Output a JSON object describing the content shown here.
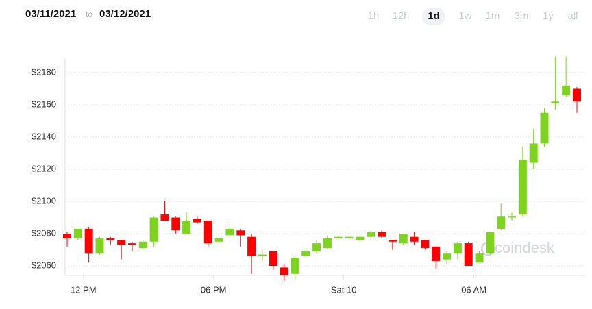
{
  "header": {
    "from": "03/11/2021",
    "to_word": "to",
    "to": "03/12/2021"
  },
  "ranges": {
    "options": [
      "1h",
      "12h",
      "1d",
      "1w",
      "1m",
      "3m",
      "1y",
      "all"
    ],
    "selected": 2
  },
  "chart_data": {
    "type": "candlestick",
    "watermark": "coindesk",
    "up_color": "#7ed321",
    "down_color": "#ff0000",
    "grid": true,
    "ylim": [
      2048,
      2195
    ],
    "yticks": [
      {
        "value": 2060,
        "label": "$2060"
      },
      {
        "value": 2080,
        "label": "$2080"
      },
      {
        "value": 2100,
        "label": "$2100"
      },
      {
        "value": 2120,
        "label": "$2120"
      },
      {
        "value": 2140,
        "label": "$2140"
      },
      {
        "value": 2160,
        "label": "$2160"
      },
      {
        "value": 2180,
        "label": "$2180"
      }
    ],
    "xlim": [
      -0.3,
      47.6
    ],
    "xticks": [
      {
        "value": 1.5,
        "label": "12 PM"
      },
      {
        "value": 13.5,
        "label": "06 PM"
      },
      {
        "value": 25.5,
        "label": "Sat 10"
      },
      {
        "value": 37.5,
        "label": "06 AM"
      }
    ],
    "open": [
      2080,
      2077,
      2083,
      2068,
      2077,
      2076,
      2074,
      2071,
      2075,
      2092,
      2090,
      2080,
      2089,
      2088,
      2075,
      2079,
      2082,
      2078,
      2066,
      2069,
      2059,
      2055,
      2066,
      2069,
      2071,
      2077,
      2077,
      2076,
      2078,
      2081,
      2076,
      2074,
      2078,
      2076,
      2072,
      2064,
      2068,
      2074,
      2062,
      2068,
      2083,
      2090,
      2092,
      2124,
      2136,
      2161,
      2166,
      2170
    ],
    "high": [
      2081,
      2083,
      2084,
      2078,
      2078,
      2076,
      2075,
      2076,
      2091,
      2100,
      2091,
      2093,
      2091,
      2088,
      2079,
      2086,
      2083,
      2080,
      2070,
      2069,
      2061,
      2066,
      2071,
      2076,
      2079,
      2078,
      2083,
      2079,
      2082,
      2082,
      2076,
      2080,
      2081,
      2076,
      2072,
      2069,
      2075,
      2075,
      2069,
      2081,
      2099,
      2093,
      2134,
      2145,
      2158,
      2190,
      2190,
      2171
    ],
    "low": [
      2072,
      2076,
      2062,
      2067,
      2073,
      2064,
      2069,
      2070,
      2072,
      2088,
      2080,
      2080,
      2086,
      2072,
      2075,
      2077,
      2072,
      2055,
      2063,
      2058,
      2051,
      2052,
      2066,
      2068,
      2070,
      2076,
      2076,
      2072,
      2076,
      2077,
      2070,
      2073,
      2073,
      2070,
      2058,
      2061,
      2064,
      2060,
      2062,
      2067,
      2082,
      2088,
      2091,
      2120,
      2134,
      2157,
      2165,
      2155
    ],
    "close": [
      2077,
      2083,
      2068,
      2077,
      2076,
      2073,
      2073,
      2075,
      2090,
      2088,
      2082,
      2088,
      2087,
      2074,
      2077,
      2083,
      2079,
      2066,
      2067,
      2060,
      2054,
      2065,
      2069,
      2074,
      2077,
      2078,
      2078,
      2078,
      2081,
      2078,
      2075,
      2080,
      2075,
      2071,
      2063,
      2068,
      2074,
      2060,
      2068,
      2081,
      2091,
      2091,
      2126,
      2136,
      2155,
      2162,
      2172,
      2162
    ]
  }
}
